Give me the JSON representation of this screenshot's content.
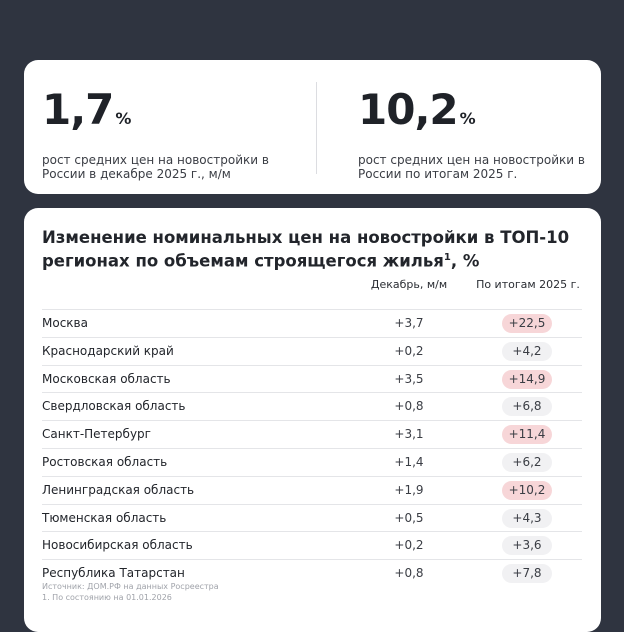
{
  "stats": [
    {
      "value": "1,7",
      "unit": "%",
      "desc": "рост средних цен на новостройки в России в декабре 2025 г., м/м"
    },
    {
      "value": "10,2",
      "unit": "%",
      "desc": "рост средних цен на новостройки в России по итогам 2025 г."
    }
  ],
  "table": {
    "title": "Изменение номинальных цен на новостройки в ТОП-10 регионах по объемам строящегося жилья",
    "title_sup": "1",
    "title_suffix": ", %",
    "col_dec": "Декабрь, м/м",
    "col_year": "По итогам 2025 г.",
    "highlight_color": "#f7d6d8",
    "rows": [
      {
        "region": "Москва",
        "dec": "+3,7",
        "year": "+22,5",
        "highlight": true
      },
      {
        "region": "Краснодарский край",
        "dec": "+0,2",
        "year": "+4,2",
        "highlight": false
      },
      {
        "region": "Московская область",
        "dec": "+3,5",
        "year": "+14,9",
        "highlight": true
      },
      {
        "region": "Свердловская область",
        "dec": "+0,8",
        "year": "+6,8",
        "highlight": false
      },
      {
        "region": "Санкт-Петербург",
        "dec": "+3,1",
        "year": "+11,4",
        "highlight": true
      },
      {
        "region": "Ростовская область",
        "dec": "+1,4",
        "year": "+6,2",
        "highlight": false
      },
      {
        "region": "Ленинградская область",
        "dec": "+1,9",
        "year": "+10,2",
        "highlight": true
      },
      {
        "region": "Тюменская область",
        "dec": "+0,5",
        "year": "+4,3",
        "highlight": false
      },
      {
        "region": "Новосибирская область",
        "dec": "+0,2",
        "year": "+3,6",
        "highlight": false
      },
      {
        "region": "Республика Татарстан",
        "dec": "+0,8",
        "year": "+7,8",
        "highlight": false
      }
    ],
    "source": "Источник: ДОМ.РФ на данных Росреестра",
    "footnote": "1. По состоянию на 01.01.2026"
  }
}
